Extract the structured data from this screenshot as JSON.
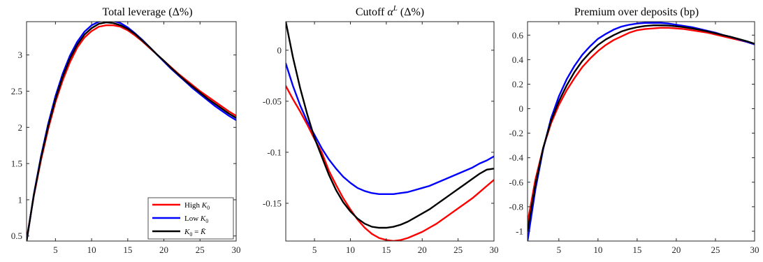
{
  "chart_data": [
    {
      "type": "line",
      "title": "Total leverage (Δ%)",
      "xlim": [
        1,
        30
      ],
      "ylim": [
        0.43,
        3.46
      ],
      "xticks": [
        5,
        10,
        15,
        20,
        25,
        30
      ],
      "yticks": [
        0.5,
        1,
        1.5,
        2,
        2.5,
        3
      ],
      "ytick_labels": [
        "0.5",
        "1",
        "1.5",
        "2",
        "2.5",
        "3"
      ],
      "legend_position": "bottom-right",
      "series": [
        {
          "name": "High K0",
          "color": "#ff0000",
          "x": [
            1,
            2,
            3,
            4,
            5,
            6,
            7,
            8,
            9,
            10,
            11,
            12,
            13,
            14,
            15,
            16,
            17,
            18,
            19,
            20,
            21,
            22,
            23,
            24,
            25,
            26,
            27,
            28,
            29,
            30
          ],
          "y": [
            0.45,
            1.05,
            1.55,
            1.98,
            2.35,
            2.65,
            2.9,
            3.1,
            3.24,
            3.33,
            3.39,
            3.41,
            3.41,
            3.39,
            3.34,
            3.27,
            3.19,
            3.1,
            3.01,
            2.92,
            2.83,
            2.74,
            2.66,
            2.58,
            2.5,
            2.43,
            2.36,
            2.29,
            2.22,
            2.16
          ]
        },
        {
          "name": "Low K0",
          "color": "#0000ff",
          "x": [
            1,
            2,
            3,
            4,
            5,
            6,
            7,
            8,
            9,
            10,
            11,
            12,
            13,
            14,
            15,
            16,
            17,
            18,
            19,
            20,
            21,
            22,
            23,
            24,
            25,
            26,
            27,
            28,
            29,
            30
          ],
          "y": [
            0.42,
            1.07,
            1.6,
            2.05,
            2.43,
            2.74,
            2.99,
            3.18,
            3.32,
            3.41,
            3.46,
            3.48,
            3.47,
            3.44,
            3.38,
            3.3,
            3.21,
            3.11,
            3.01,
            2.91,
            2.81,
            2.72,
            2.63,
            2.54,
            2.46,
            2.38,
            2.3,
            2.23,
            2.16,
            2.1
          ]
        },
        {
          "name": "K0 = K̄",
          "color": "#000000",
          "x": [
            1,
            2,
            3,
            4,
            5,
            6,
            7,
            8,
            9,
            10,
            11,
            12,
            13,
            14,
            15,
            16,
            17,
            18,
            19,
            20,
            21,
            22,
            23,
            24,
            25,
            26,
            27,
            28,
            29,
            30
          ],
          "y": [
            0.43,
            1.06,
            1.58,
            2.02,
            2.39,
            2.7,
            2.95,
            3.14,
            3.28,
            3.37,
            3.43,
            3.45,
            3.44,
            3.41,
            3.36,
            3.29,
            3.2,
            3.11,
            3.01,
            2.92,
            2.82,
            2.73,
            2.64,
            2.56,
            2.48,
            2.4,
            2.33,
            2.26,
            2.19,
            2.13
          ]
        }
      ]
    },
    {
      "type": "line",
      "title": "Cutoff αL (Δ%)",
      "xlim": [
        1,
        30
      ],
      "ylim": [
        -0.187,
        0.028
      ],
      "xticks": [
        5,
        10,
        15,
        20,
        25,
        30
      ],
      "yticks": [
        0,
        -0.05,
        -0.1,
        -0.15
      ],
      "ytick_labels": [
        "0",
        "-0.05",
        "-0.1",
        "-0.15"
      ],
      "series": [
        {
          "name": "High K0",
          "color": "#ff0000",
          "x": [
            1,
            2,
            3,
            4,
            5,
            6,
            7,
            8,
            9,
            10,
            11,
            12,
            13,
            14,
            15,
            16,
            17,
            18,
            19,
            20,
            21,
            22,
            23,
            24,
            25,
            26,
            27,
            28,
            29,
            30
          ],
          "y": [
            -0.035,
            -0.048,
            -0.06,
            -0.073,
            -0.087,
            -0.1,
            -0.118,
            -0.132,
            -0.145,
            -0.156,
            -0.166,
            -0.174,
            -0.18,
            -0.184,
            -0.186,
            -0.187,
            -0.186,
            -0.184,
            -0.181,
            -0.178,
            -0.174,
            -0.17,
            -0.165,
            -0.16,
            -0.155,
            -0.15,
            -0.145,
            -0.139,
            -0.133,
            -0.127
          ]
        },
        {
          "name": "Low K0",
          "color": "#0000ff",
          "x": [
            1,
            2,
            3,
            4,
            5,
            6,
            7,
            8,
            9,
            10,
            11,
            12,
            13,
            14,
            15,
            16,
            17,
            18,
            19,
            20,
            21,
            22,
            23,
            24,
            25,
            26,
            27,
            28,
            29,
            30
          ],
          "y": [
            -0.013,
            -0.035,
            -0.054,
            -0.07,
            -0.083,
            -0.096,
            -0.107,
            -0.116,
            -0.124,
            -0.13,
            -0.135,
            -0.138,
            -0.14,
            -0.141,
            -0.141,
            -0.141,
            -0.14,
            -0.139,
            -0.137,
            -0.135,
            -0.133,
            -0.13,
            -0.127,
            -0.124,
            -0.121,
            -0.118,
            -0.115,
            -0.111,
            -0.108,
            -0.104
          ]
        },
        {
          "name": "K0 = K̄",
          "color": "#000000",
          "x": [
            1,
            2,
            3,
            4,
            5,
            6,
            7,
            8,
            9,
            10,
            11,
            12,
            13,
            14,
            15,
            16,
            17,
            18,
            19,
            20,
            21,
            22,
            23,
            24,
            25,
            26,
            27,
            28,
            29,
            30
          ],
          "y": [
            0.028,
            -0.007,
            -0.037,
            -0.063,
            -0.086,
            -0.104,
            -0.122,
            -0.137,
            -0.149,
            -0.158,
            -0.165,
            -0.17,
            -0.173,
            -0.174,
            -0.174,
            -0.173,
            -0.171,
            -0.168,
            -0.164,
            -0.16,
            -0.156,
            -0.151,
            -0.146,
            -0.141,
            -0.136,
            -0.131,
            -0.126,
            -0.121,
            -0.117,
            -0.116
          ]
        }
      ]
    },
    {
      "type": "line",
      "title": "Premium over deposits (bp)",
      "xlim": [
        1,
        30
      ],
      "ylim": [
        -1.08,
        0.71
      ],
      "xticks": [
        5,
        10,
        15,
        20,
        25,
        30
      ],
      "yticks": [
        0.6,
        0.4,
        0.2,
        0,
        -0.2,
        -0.4,
        -0.6,
        -0.8,
        -1
      ],
      "ytick_labels": [
        "0.6",
        "0.4",
        "0.2",
        "0",
        "-0.2",
        "-0.4",
        "-0.6",
        "-0.8",
        "-1"
      ],
      "series": [
        {
          "name": "High K0",
          "color": "#ff0000",
          "x": [
            1,
            2,
            3,
            4,
            5,
            6,
            7,
            8,
            9,
            10,
            11,
            12,
            13,
            14,
            15,
            16,
            17,
            18,
            19,
            20,
            21,
            22,
            23,
            24,
            25,
            26,
            27,
            28,
            29,
            30
          ],
          "y": [
            -0.93,
            -0.58,
            -0.32,
            -0.12,
            0.03,
            0.15,
            0.25,
            0.34,
            0.41,
            0.47,
            0.52,
            0.56,
            0.59,
            0.62,
            0.64,
            0.65,
            0.655,
            0.66,
            0.66,
            0.655,
            0.65,
            0.64,
            0.63,
            0.62,
            0.605,
            0.59,
            0.575,
            0.56,
            0.545,
            0.525
          ]
        },
        {
          "name": "Low K0",
          "color": "#0000ff",
          "x": [
            1,
            2,
            3,
            4,
            5,
            6,
            7,
            8,
            9,
            10,
            11,
            12,
            13,
            14,
            15,
            16,
            17,
            18,
            19,
            20,
            21,
            22,
            23,
            24,
            25,
            26,
            27,
            28,
            29,
            30
          ],
          "y": [
            -1.08,
            -0.66,
            -0.33,
            -0.08,
            0.1,
            0.24,
            0.35,
            0.44,
            0.51,
            0.57,
            0.61,
            0.645,
            0.67,
            0.685,
            0.695,
            0.7,
            0.7,
            0.7,
            0.695,
            0.685,
            0.675,
            0.665,
            0.65,
            0.635,
            0.62,
            0.6,
            0.585,
            0.565,
            0.545,
            0.525
          ]
        },
        {
          "name": "K0 = K̄",
          "color": "#000000",
          "x": [
            1,
            2,
            3,
            4,
            5,
            6,
            7,
            8,
            9,
            10,
            11,
            12,
            13,
            14,
            15,
            16,
            17,
            18,
            19,
            20,
            21,
            22,
            23,
            24,
            25,
            26,
            27,
            28,
            29,
            30
          ],
          "y": [
            -1.0,
            -0.62,
            -0.32,
            -0.1,
            0.06,
            0.19,
            0.3,
            0.39,
            0.46,
            0.52,
            0.565,
            0.6,
            0.63,
            0.65,
            0.665,
            0.675,
            0.68,
            0.68,
            0.678,
            0.672,
            0.665,
            0.655,
            0.643,
            0.63,
            0.615,
            0.6,
            0.585,
            0.568,
            0.55,
            0.53
          ]
        }
      ]
    }
  ]
}
